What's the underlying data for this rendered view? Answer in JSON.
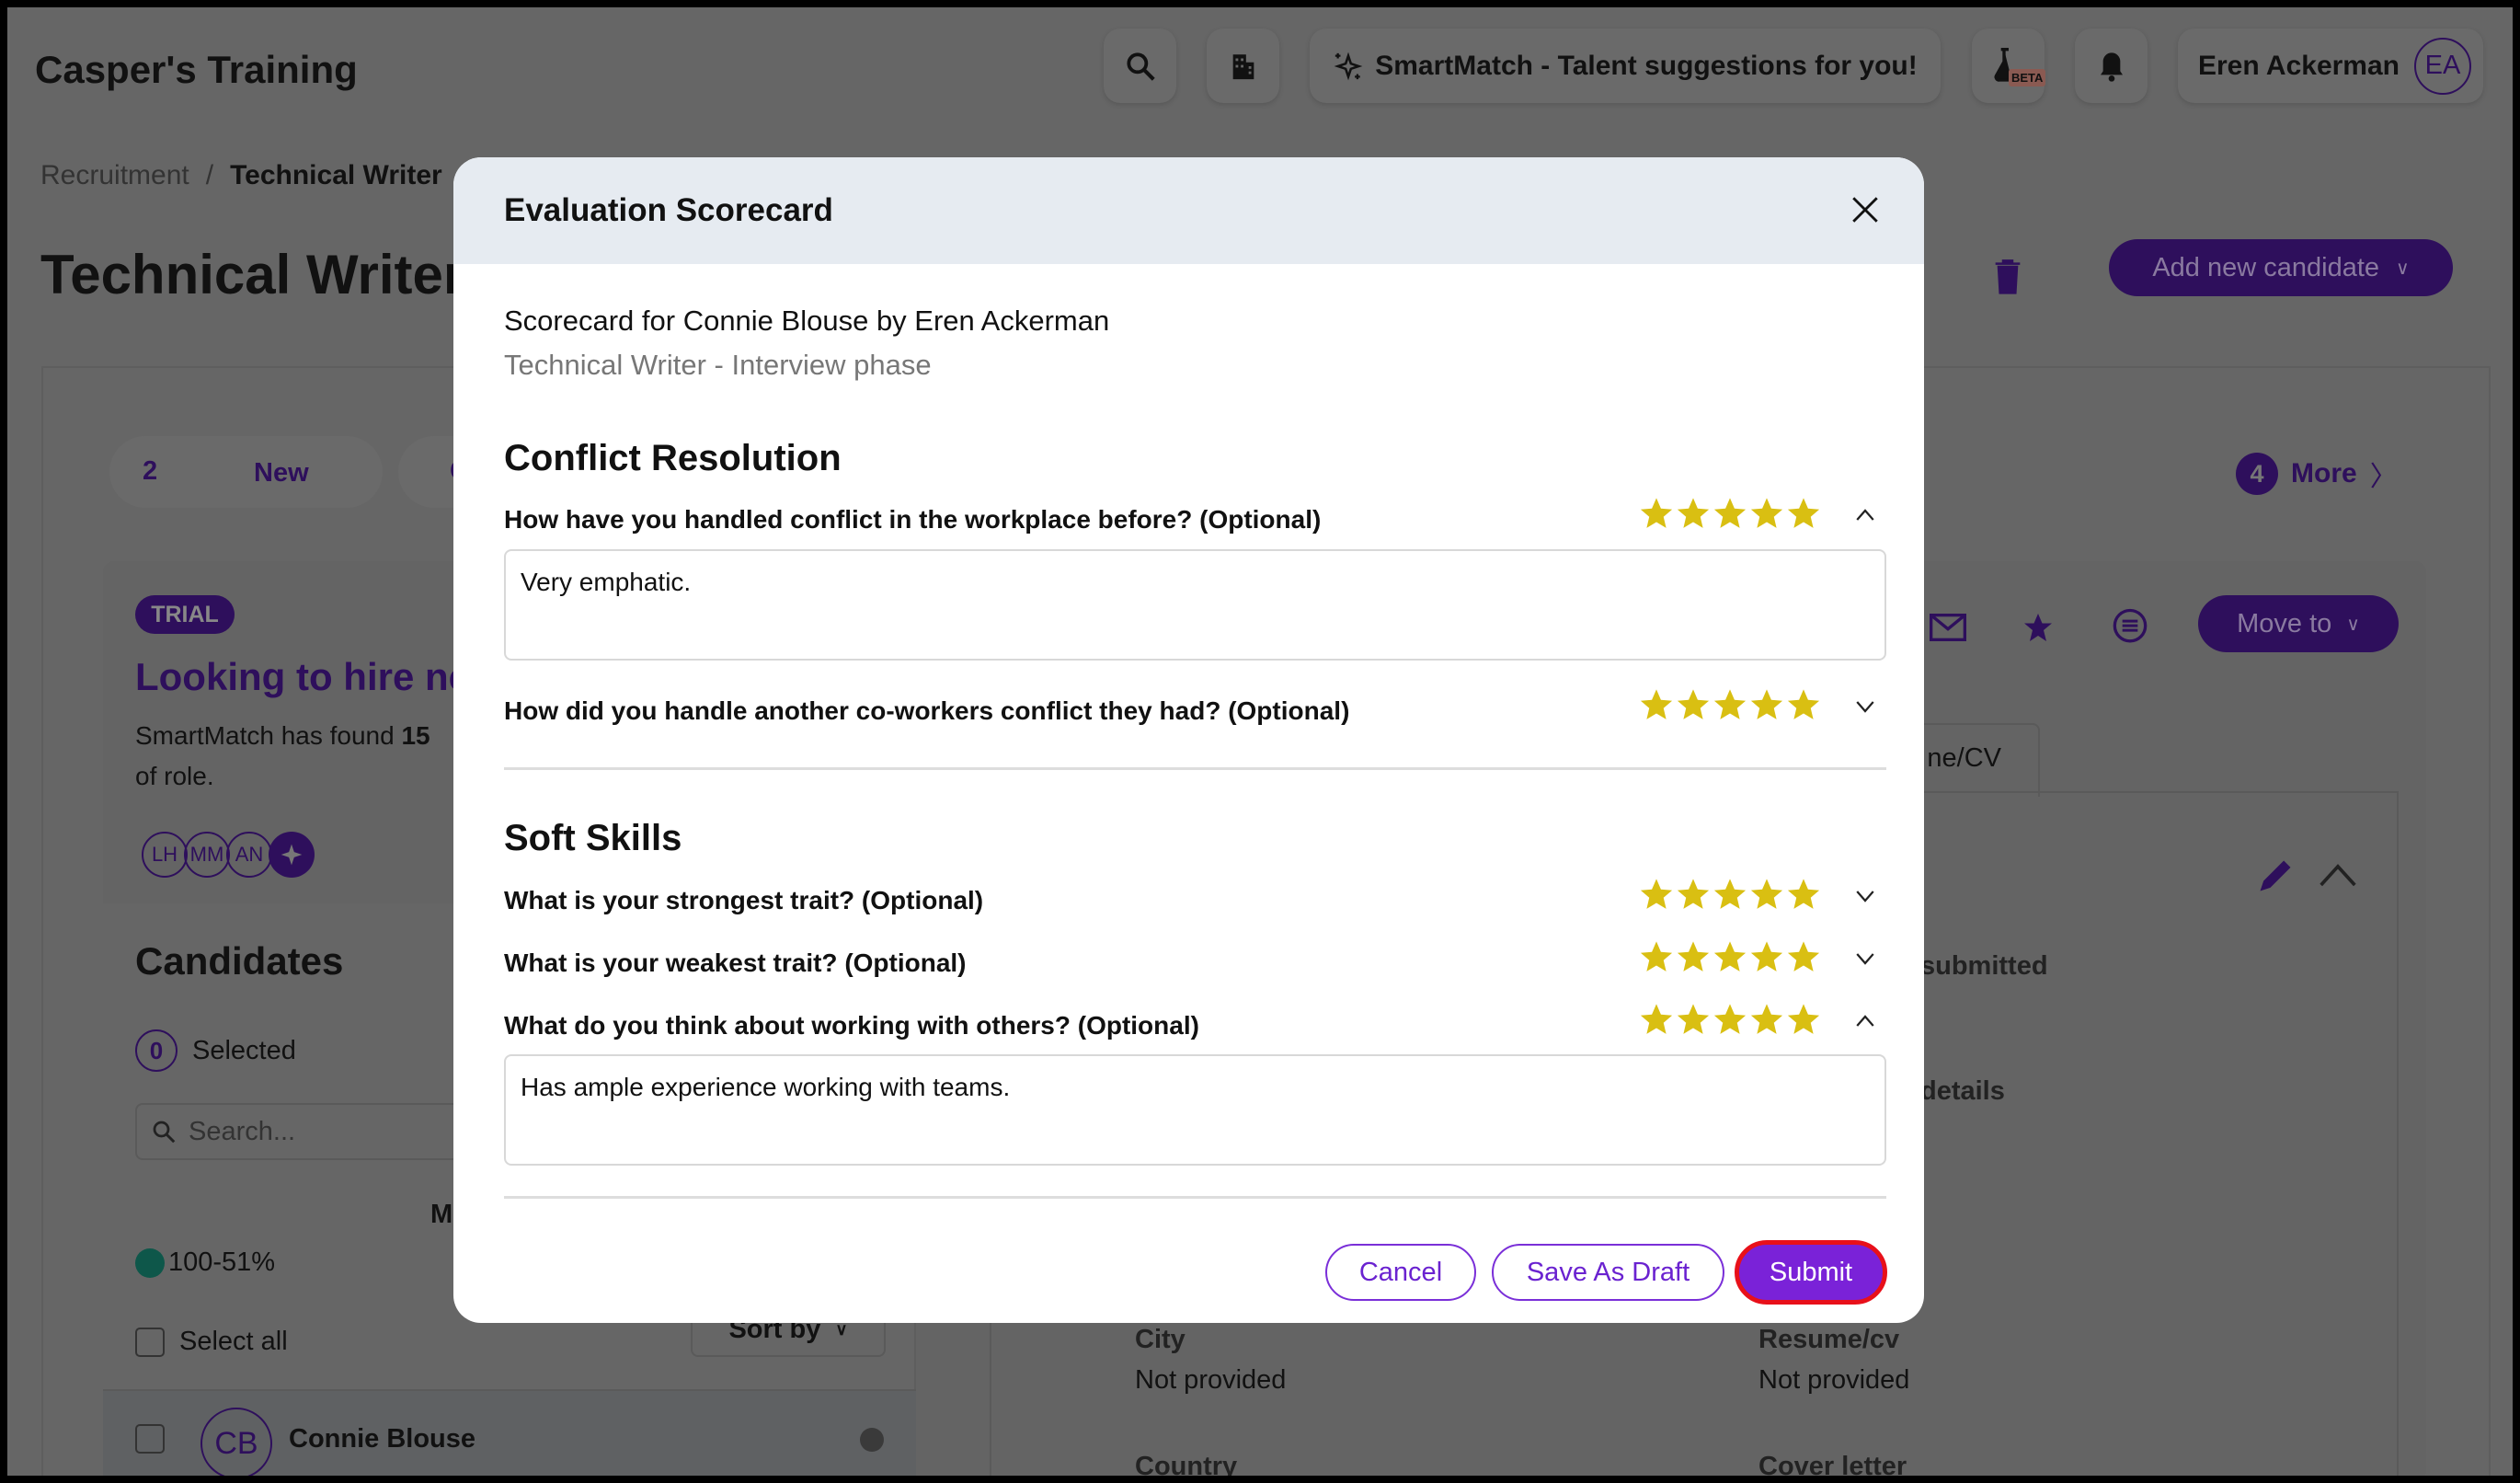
{
  "header": {
    "app_title": "Casper's Training",
    "smartmatch_label": "SmartMatch - Talent suggestions for you!",
    "beta_badge": "BETA",
    "user_name": "Eren Ackerman",
    "user_initials": "EA"
  },
  "breadcrumb": {
    "parent": "Recruitment",
    "separator": "/",
    "current": "Technical Writer"
  },
  "page": {
    "title": "Technical Writer",
    "add_candidate_label": "Add new candidate"
  },
  "stages": [
    {
      "count": "2",
      "label": "New"
    },
    {
      "count": "C",
      "label": ""
    }
  ],
  "more": {
    "count": "4",
    "label": "More"
  },
  "card": {
    "badge": "TRIAL",
    "title": "Looking to hire ne",
    "text_prefix": "SmartMatch has found ",
    "text_bold": "15",
    "text_line2": "of role.",
    "avatars": [
      "LH",
      "MM",
      "AN"
    ],
    "move_to_label": "Move to"
  },
  "candidates": {
    "title": "Candidates",
    "selected_count": "0",
    "selected_label": "Selected",
    "search_placeholder": "Search...",
    "column_initial": "M",
    "match_legend": "100-51%",
    "select_all": "Select all",
    "sort_by": "Sort by",
    "rows": [
      {
        "initials": "CB",
        "name": "Connie Blouse"
      }
    ]
  },
  "details": {
    "tab_partial": "ne/CV",
    "submitted_partial": "submitted",
    "details_partial": "details",
    "fields": [
      {
        "label": "City",
        "value": "Not provided"
      },
      {
        "label": "Resume/cv",
        "value": "Not provided"
      },
      {
        "label": "Country",
        "value": ""
      },
      {
        "label": "Cover letter",
        "value": ""
      }
    ]
  },
  "modal": {
    "title": "Evaluation Scorecard",
    "subtitle": "Scorecard for Connie Blouse by Eren Ackerman",
    "phase": "Technical Writer - Interview phase",
    "sections": [
      {
        "title": "Conflict Resolution",
        "questions": [
          {
            "text": "How have you handled conflict in the workplace before? (Optional)",
            "rating": 5,
            "expanded": true,
            "answer": "Very emphatic."
          },
          {
            "text": "How did you handle another co-workers conflict they had? (Optional)",
            "rating": 5,
            "expanded": false
          }
        ]
      },
      {
        "title": "Soft Skills",
        "questions": [
          {
            "text": "What is your strongest trait? (Optional)",
            "rating": 5,
            "expanded": false
          },
          {
            "text": "What is your weakest trait? (Optional)",
            "rating": 5,
            "expanded": false
          },
          {
            "text": "What do you think about working with others? (Optional)",
            "rating": 5,
            "expanded": true,
            "answer": "Has ample experience working with teams."
          }
        ]
      }
    ],
    "cancel_label": "Cancel",
    "draft_label": "Save As Draft",
    "submit_label": "Submit"
  },
  "colors": {
    "star": "#d9bf12",
    "accent": "#7a22d8",
    "submit_outline": "#e8101a",
    "overlay_bg": "#666666"
  }
}
